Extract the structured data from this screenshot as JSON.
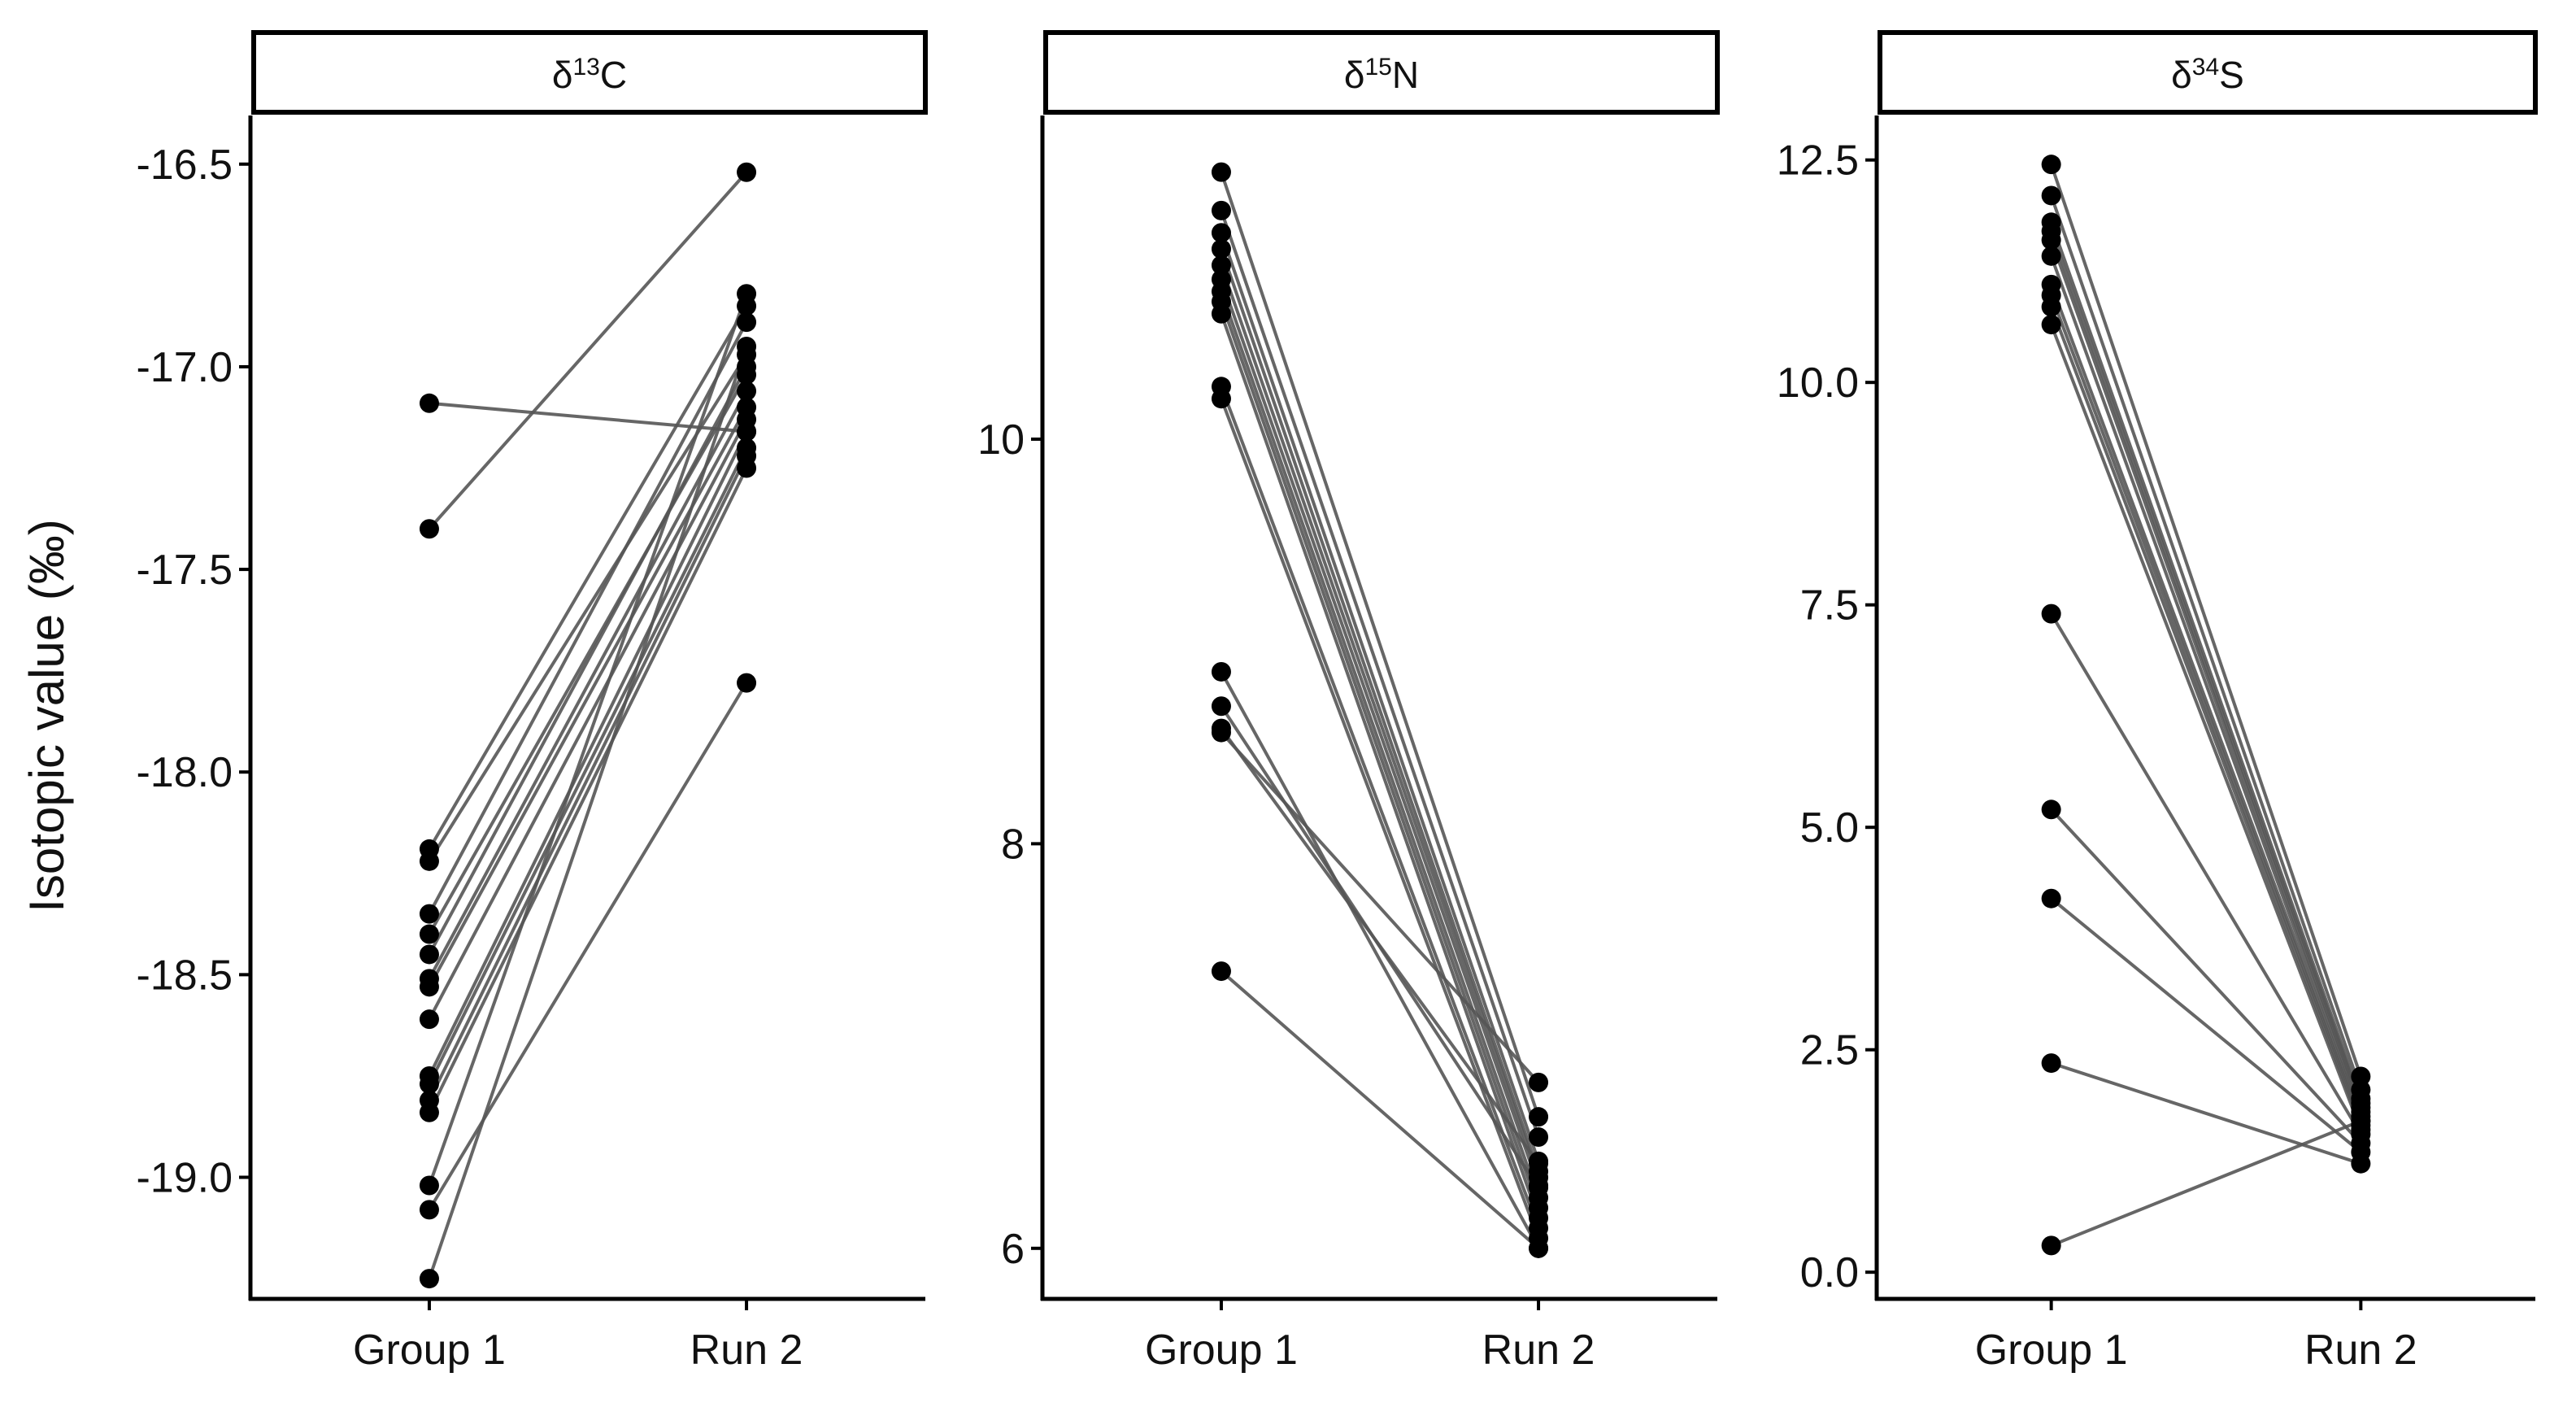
{
  "chart_data": {
    "type": "line",
    "ylabel": "Isotopic value (‰)",
    "categories": [
      "Group 1",
      "Run 2"
    ],
    "colors": {
      "point": "#000000",
      "line": "#555555",
      "strip_fill": "#ffffff",
      "axis": "#000000"
    },
    "panels": [
      {
        "strip_base": "δ",
        "strip_sup": "13",
        "strip_elem": "C",
        "ylim": [
          -19.3,
          -16.38
        ],
        "yticks": [
          -19.0,
          -18.5,
          -18.0,
          -17.5,
          -17.0,
          -16.5
        ],
        "ytick_labels": [
          "-19.0",
          "-18.5",
          "-18.0",
          "-17.5",
          "-17.0",
          "-16.5"
        ],
        "pairs": [
          [
            -17.09,
            -17.16
          ],
          [
            -17.4,
            -16.52
          ],
          [
            -18.19,
            -16.85
          ],
          [
            -18.22,
            -16.97
          ],
          [
            -18.35,
            -16.89
          ],
          [
            -18.4,
            -17.02
          ],
          [
            -18.45,
            -17.0
          ],
          [
            -18.51,
            -17.06
          ],
          [
            -18.53,
            -17.1
          ],
          [
            -18.61,
            -17.13
          ],
          [
            -18.75,
            -17.16
          ],
          [
            -18.77,
            -17.2
          ],
          [
            -18.81,
            -17.22
          ],
          [
            -18.84,
            -17.25
          ],
          [
            -19.02,
            -16.82
          ],
          [
            -19.08,
            -17.78
          ],
          [
            -19.25,
            -16.95
          ]
        ]
      },
      {
        "strip_base": "δ",
        "strip_sup": "15",
        "strip_elem": "N",
        "ylim": [
          5.75,
          11.6
        ],
        "yticks": [
          6,
          8,
          10
        ],
        "ytick_labels": [
          "6",
          "8",
          "10"
        ],
        "pairs": [
          [
            11.32,
            6.65
          ],
          [
            11.13,
            6.55
          ],
          [
            11.02,
            6.43
          ],
          [
            10.94,
            6.38
          ],
          [
            10.86,
            6.35
          ],
          [
            10.79,
            6.31
          ],
          [
            10.73,
            6.25
          ],
          [
            10.68,
            6.2
          ],
          [
            10.62,
            6.15
          ],
          [
            10.26,
            6.1
          ],
          [
            10.2,
            6.05
          ],
          [
            8.85,
            6.0
          ],
          [
            8.68,
            6.3
          ],
          [
            8.57,
            6.42
          ],
          [
            8.55,
            6.82
          ],
          [
            7.37,
            6.0
          ]
        ]
      },
      {
        "strip_base": "δ",
        "strip_sup": "34",
        "strip_elem": "S",
        "ylim": [
          -0.3,
          13.0
        ],
        "yticks": [
          0.0,
          2.5,
          5.0,
          7.5,
          10.0,
          12.5
        ],
        "ytick_labels": [
          "0.0",
          "2.5",
          "5.0",
          "7.5",
          "10.0",
          "12.5"
        ],
        "pairs": [
          [
            12.45,
            2.2
          ],
          [
            12.1,
            2.05
          ],
          [
            11.8,
            1.95
          ],
          [
            11.7,
            1.9
          ],
          [
            11.6,
            1.85
          ],
          [
            11.42,
            1.8
          ],
          [
            11.1,
            1.75
          ],
          [
            10.98,
            1.7
          ],
          [
            10.85,
            1.65
          ],
          [
            10.65,
            1.6
          ],
          [
            7.4,
            1.55
          ],
          [
            5.2,
            1.45
          ],
          [
            4.2,
            1.35
          ],
          [
            2.35,
            1.22
          ],
          [
            0.3,
            1.7
          ]
        ]
      }
    ]
  }
}
